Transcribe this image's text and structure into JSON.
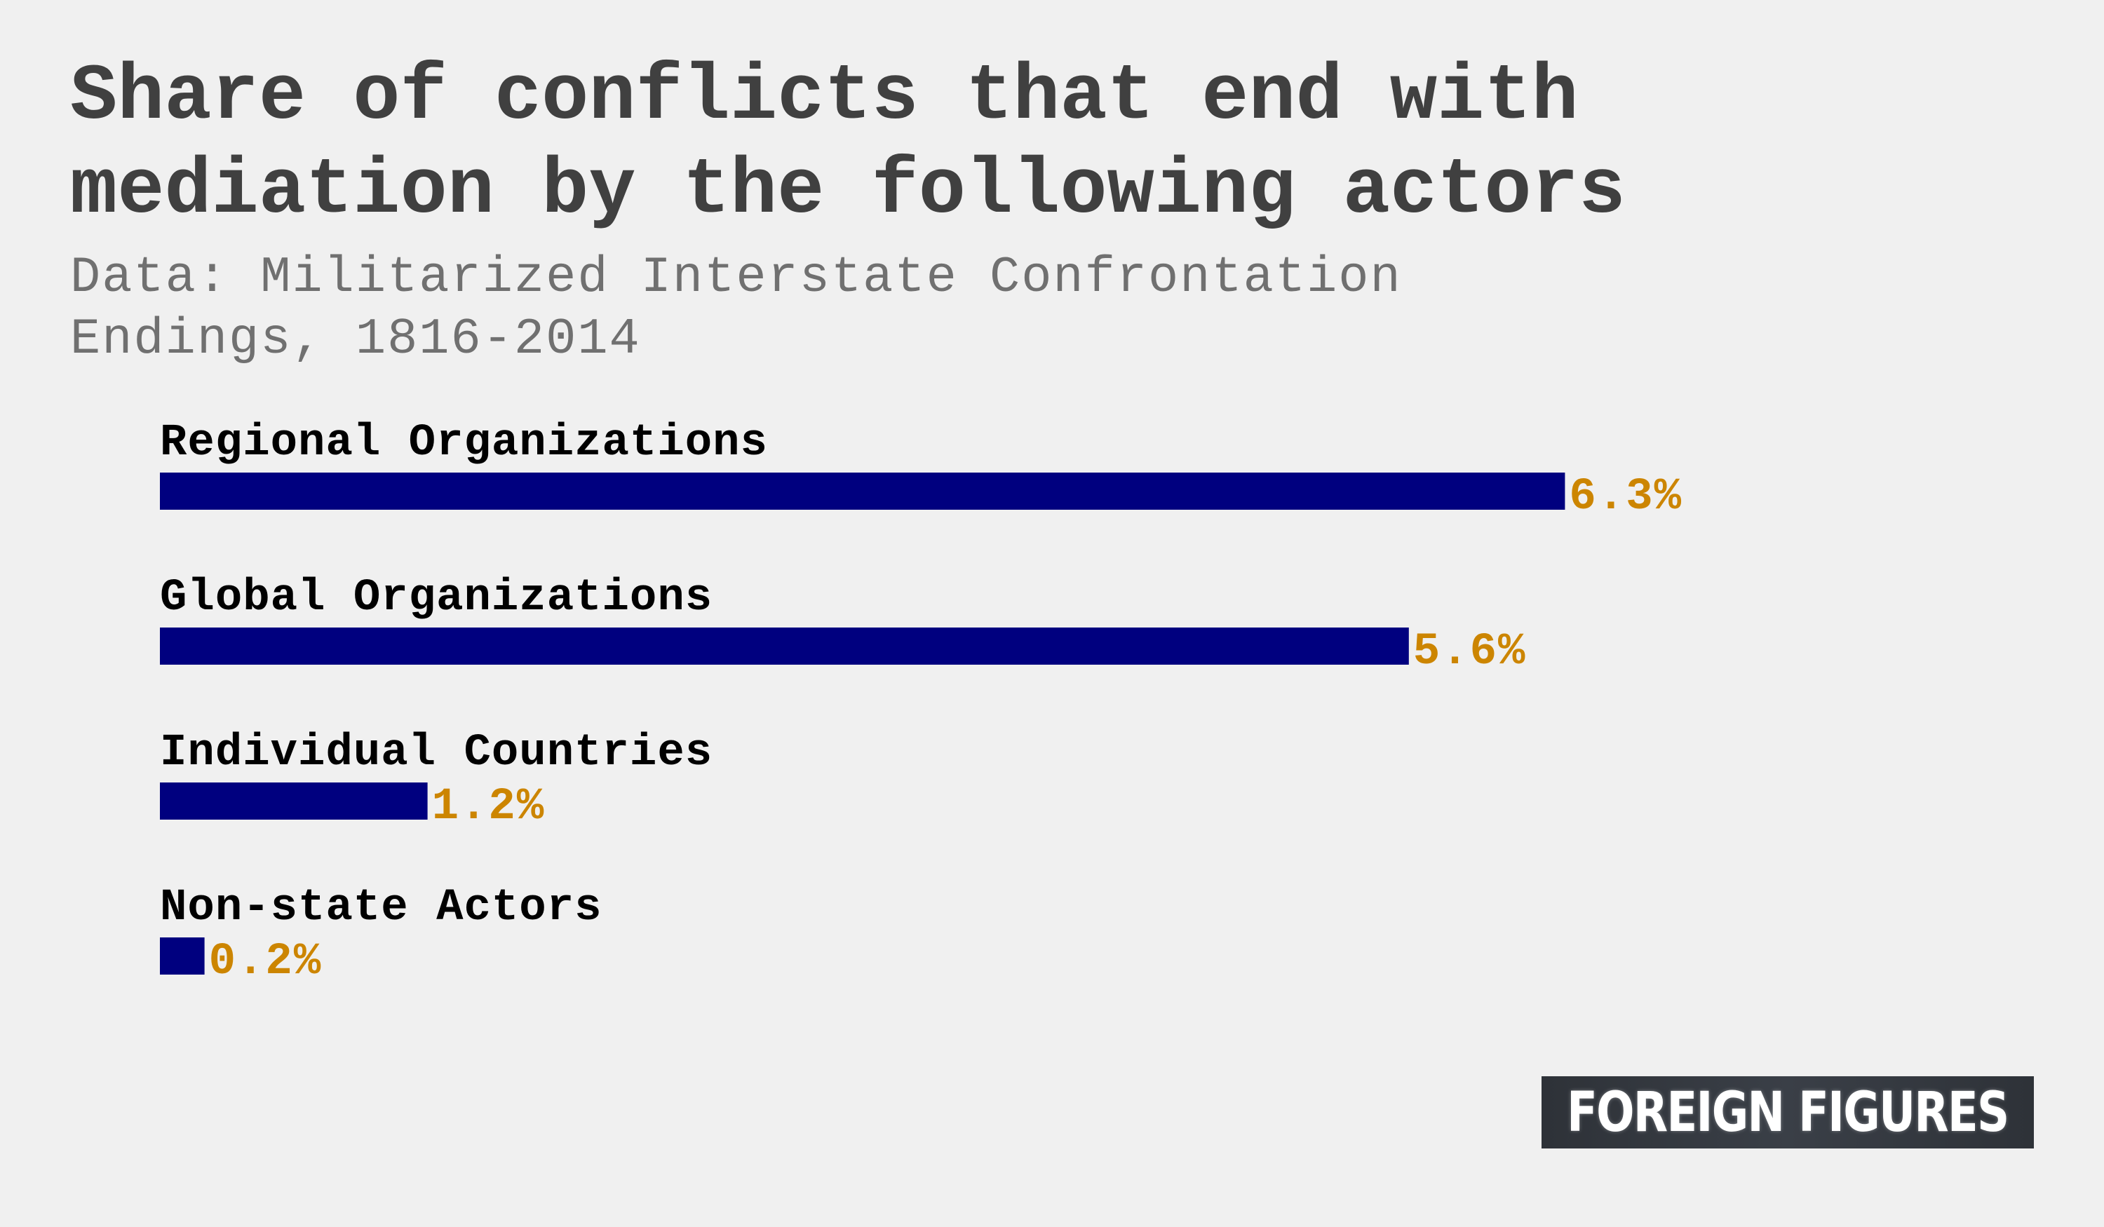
{
  "chart_data": {
    "type": "bar",
    "orientation": "horizontal",
    "title": "Share of conflicts that end with mediation by the following actors",
    "subtitle": "Data: Militarized Interstate Confrontation Endings, 1816-2014",
    "categories": [
      "Regional Organizations",
      "Global Organizations",
      "Individual Countries",
      "Non-state Actors"
    ],
    "values": [
      6.3,
      5.6,
      1.2,
      0.2
    ],
    "value_labels": [
      "6.3%",
      "5.6%",
      "1.2%",
      "0.2%"
    ],
    "unit": "%",
    "grid": false,
    "legend": "none",
    "colors": {
      "bar": "#00007f",
      "value_label": "#cc8500",
      "category_label": "#000000",
      "title": "#404040",
      "subtitle": "#707070",
      "background": "#f0f0f0"
    }
  },
  "brand": {
    "logo_text": "FOREIGN FIGURES"
  }
}
